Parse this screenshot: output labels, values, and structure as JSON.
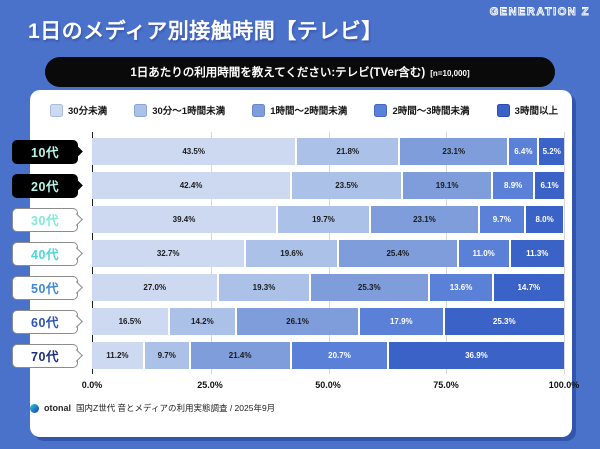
{
  "header": {
    "title": "1日のメディア別接触時間【テレビ】",
    "brand": "GENERATION Z"
  },
  "question": {
    "text": "1日あたりの利用時間を教えてください:テレビ(TVer含む)",
    "sample": "[n=10,000]"
  },
  "colors": {
    "background": "#4b72cb",
    "panel": "#ffffff",
    "question_pill": "#0a0a0a",
    "grid_line": "#d7d7d7",
    "axis_zero_tick": "#1d1d1d"
  },
  "chart_data": {
    "type": "bar",
    "stacked": true,
    "orientation": "horizontal",
    "title": "1日のメディア別接触時間【テレビ】",
    "xlabel": "",
    "ylabel": "",
    "xlim": [
      0,
      100
    ],
    "grid": true,
    "legend_position": "top",
    "categories": [
      "10代",
      "20代",
      "30代",
      "40代",
      "50代",
      "60代",
      "70代"
    ],
    "series": [
      {
        "name": "30分未満",
        "color": "#cdd9f1",
        "swatch_border": "#a9bce0",
        "text_color": "#1a1a1a",
        "values": [
          43.5,
          42.4,
          39.4,
          32.7,
          27.0,
          16.5,
          11.2
        ]
      },
      {
        "name": "30分〜1時間未満",
        "color": "#abc1e8",
        "swatch_border": "#8aa5d8",
        "text_color": "#1a1a1a",
        "values": [
          21.8,
          23.5,
          19.7,
          19.6,
          19.3,
          14.2,
          9.7
        ]
      },
      {
        "name": "1時間〜2時間未満",
        "color": "#7e9dda",
        "swatch_border": "#6688cc",
        "text_color": "#1a1a1a",
        "values": [
          23.1,
          19.1,
          23.1,
          25.4,
          25.3,
          26.1,
          21.4
        ]
      },
      {
        "name": "2時間〜3時間未満",
        "color": "#5a80d8",
        "swatch_border": "#4568c4",
        "text_color": "#ffffff",
        "values": [
          6.4,
          8.9,
          9.7,
          11.0,
          13.6,
          17.9,
          20.7
        ]
      },
      {
        "name": "3時間以上",
        "color": "#3b62c6",
        "swatch_border": "#2a4cb0",
        "text_color": "#ffffff",
        "values": [
          5.2,
          6.1,
          8.0,
          11.3,
          14.7,
          25.3,
          36.9
        ]
      }
    ],
    "category_pill_styles": [
      {
        "bg": "#000000",
        "text": "#b9f7e9",
        "border": "#000000"
      },
      {
        "bg": "#000000",
        "text": "#b9f7e9",
        "border": "#000000"
      },
      {
        "bg": "#ffffff",
        "text": "#82e9d9",
        "border": "#8c8c8c"
      },
      {
        "bg": "#ffffff",
        "text": "#4cd6de",
        "border": "#8c8c8c"
      },
      {
        "bg": "#ffffff",
        "text": "#3d87d9",
        "border": "#8c8c8c"
      },
      {
        "bg": "#ffffff",
        "text": "#2c53b5",
        "border": "#8c8c8c"
      },
      {
        "bg": "#ffffff",
        "text": "#1a2d7a",
        "border": "#8c8c8c"
      }
    ],
    "x_ticks": [
      "0.0%",
      "25.0%",
      "50.0%",
      "75.0%",
      "100.0%"
    ],
    "grid_positions": [
      25,
      50,
      75,
      100
    ]
  },
  "footer": {
    "logo": "otonal",
    "text": "国内Z世代 音とメディアの利用実態調査 / 2025年9月"
  }
}
